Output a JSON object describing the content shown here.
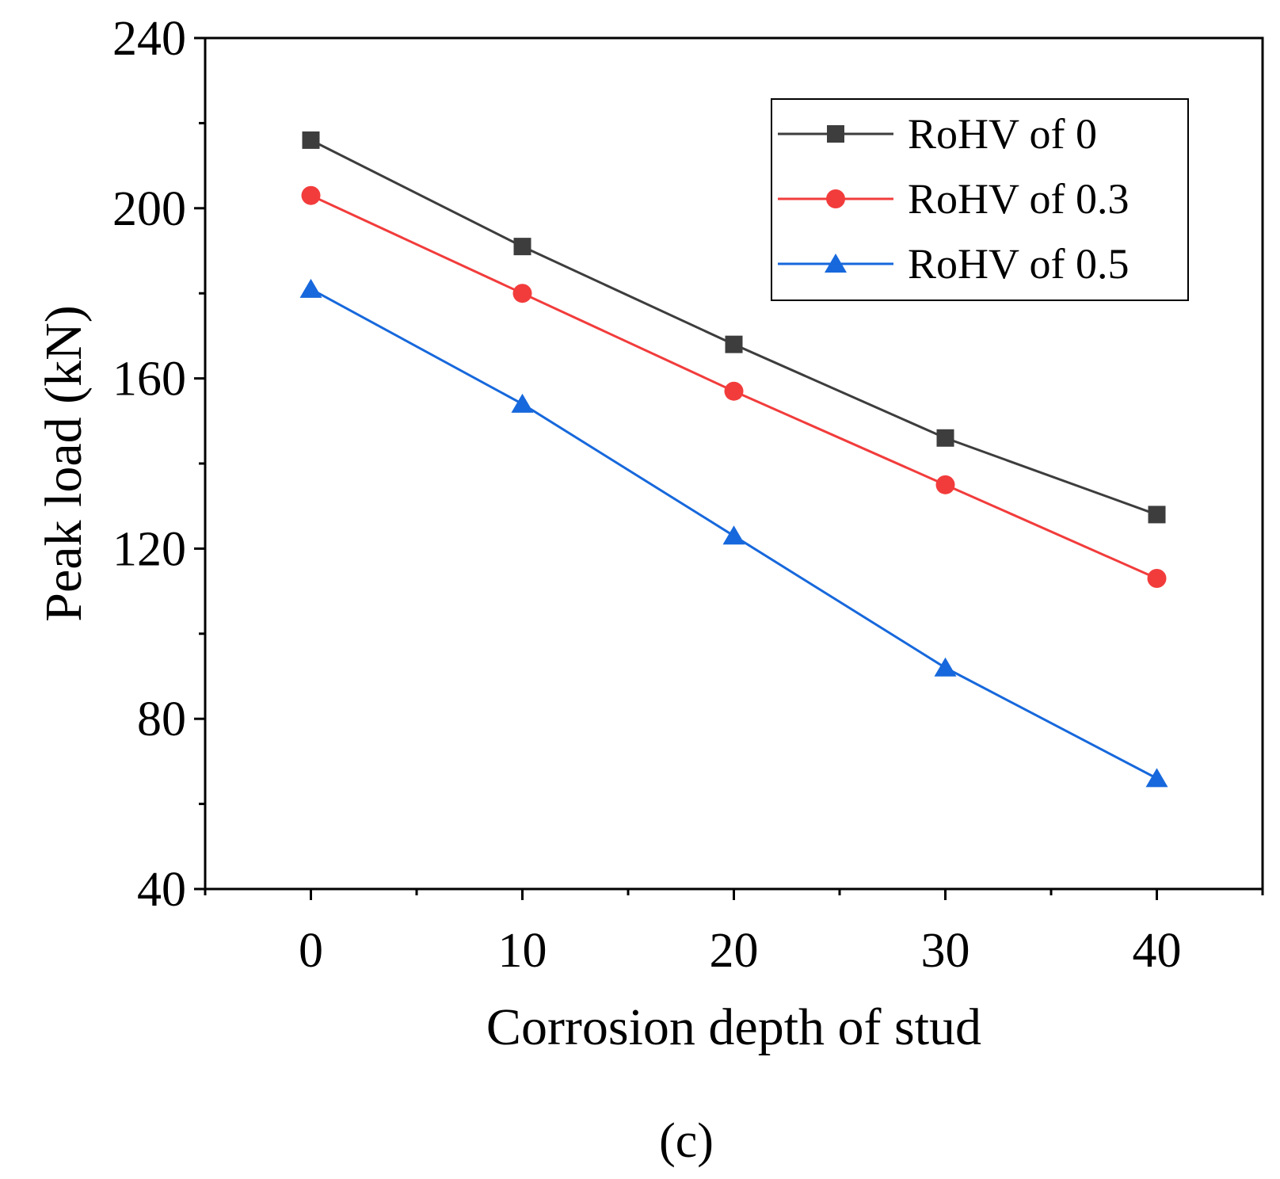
{
  "chart_data": {
    "type": "line",
    "xlabel": "Corrosion depth of  stud",
    "ylabel": "Peak load (kN)",
    "panel_label": "(c)",
    "x": [
      0,
      10,
      20,
      30,
      40
    ],
    "xlim": [
      -5,
      45
    ],
    "ylim": [
      40,
      240
    ],
    "xticks": [
      0,
      10,
      20,
      30,
      40
    ],
    "yticks": [
      40,
      80,
      120,
      160,
      200,
      240
    ],
    "x_tick_labels": [
      "0",
      "10",
      "20",
      "30",
      "40"
    ],
    "y_tick_labels": [
      "40",
      "80",
      "120",
      "160",
      "200",
      "240"
    ],
    "grid": false,
    "legend_position": "top-right",
    "series": [
      {
        "name": "RoHV of 0",
        "marker": "square",
        "color": "#3d3d3d",
        "values": [
          216,
          191,
          168,
          146,
          128
        ]
      },
      {
        "name": "RoHV of 0.3",
        "marker": "circle",
        "color": "#f23c3c",
        "values": [
          203,
          180,
          157,
          135,
          113
        ]
      },
      {
        "name": "RoHV of 0.5",
        "marker": "triangle",
        "color": "#1768dc",
        "values": [
          181,
          154,
          123,
          92,
          66
        ]
      }
    ]
  }
}
